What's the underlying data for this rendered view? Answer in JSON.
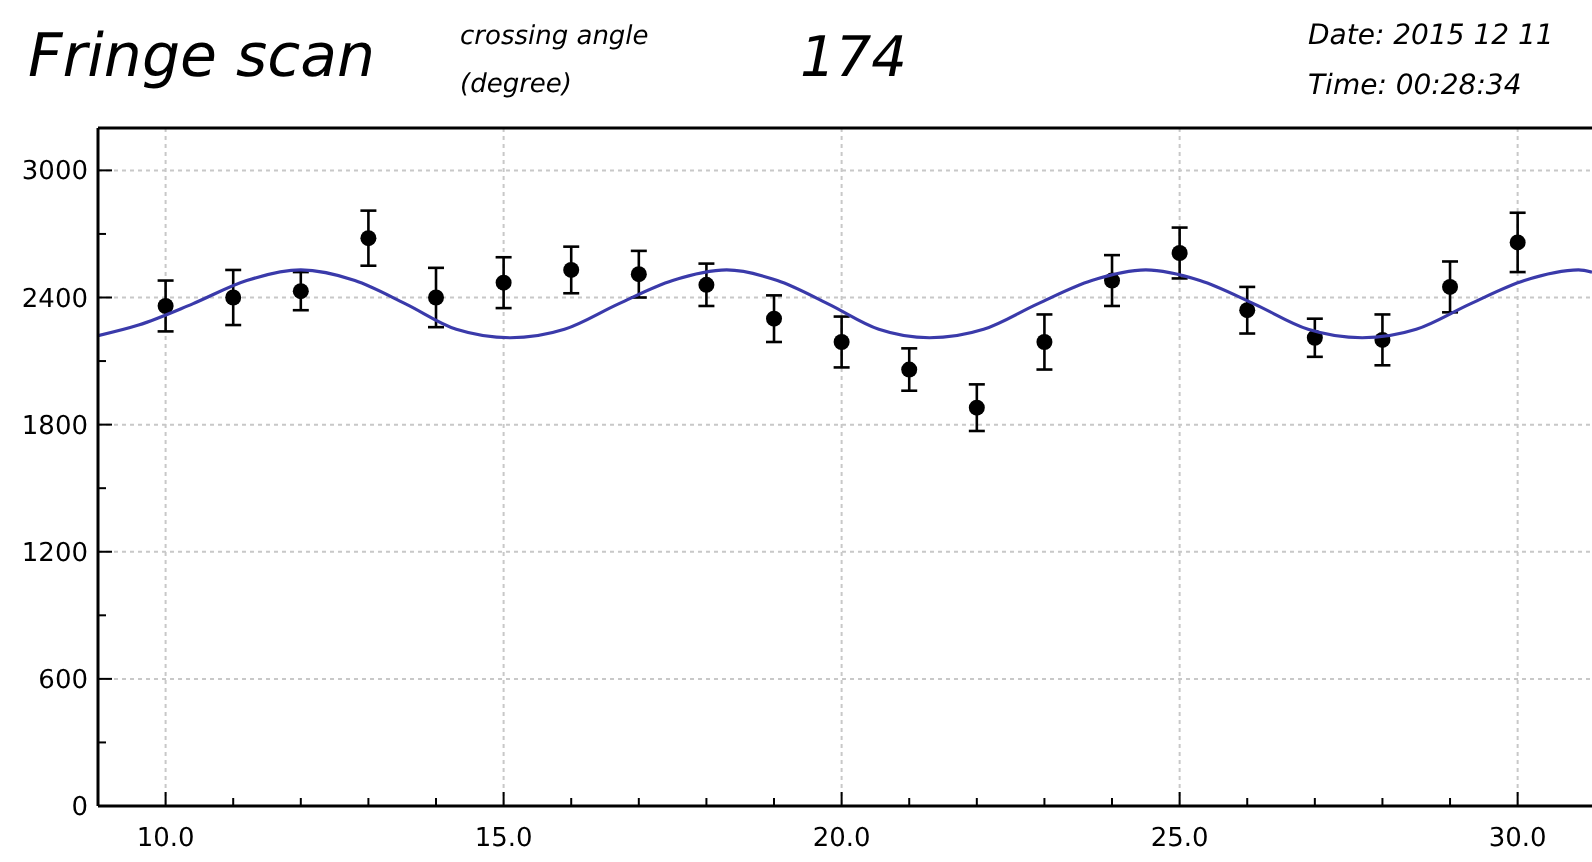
{
  "chart_data": {
    "type": "scatter",
    "title": "Fringe scan",
    "annotations": [
      "crossing angle",
      "(degree)",
      "174",
      "Date: 2015 12 11",
      "Time: 00:28:34"
    ],
    "xlim": [
      9,
      31.1
    ],
    "xticks": [
      {
        "value": 10,
        "label": "10.0"
      },
      {
        "value": 15,
        "label": "15.0"
      },
      {
        "value": 20,
        "label": "20.0"
      },
      {
        "value": 25,
        "label": "25.0"
      },
      {
        "value": 30,
        "label": "30.0"
      }
    ],
    "ylim": [
      0,
      3200
    ],
    "yticks": [
      0,
      600,
      1200,
      1800,
      2400,
      3000
    ],
    "grid": true,
    "marker": "circle",
    "series": [
      {
        "color": "#000000",
        "x": [
          10,
          11,
          12,
          13,
          14,
          15,
          16,
          17,
          18,
          19,
          20,
          21,
          22,
          23,
          24,
          25,
          26,
          27,
          28,
          29,
          30
        ],
        "values": [
          2360,
          2400,
          2430,
          2680,
          2400,
          2470,
          2530,
          2510,
          2460,
          2300,
          2190,
          2060,
          1880,
          2190,
          2480,
          2610,
          2340,
          2210,
          2200,
          2450,
          2660
        ],
        "errors": [
          120,
          130,
          90,
          130,
          140,
          120,
          110,
          110,
          100,
          110,
          120,
          100,
          110,
          130,
          120,
          120,
          110,
          90,
          120,
          120,
          140
        ]
      },
      {
        "type": "line",
        "color": "#3a3aaa",
        "line_style": "solid",
        "marker": "none",
        "x": [
          9.0,
          9.6,
          10.4,
          11.2,
          12.0,
          12.8,
          13.55,
          14.3,
          15.1,
          15.9,
          16.7,
          17.5,
          18.3,
          19.05,
          19.8,
          20.55,
          21.3,
          22.1,
          22.9,
          23.7,
          24.5,
          25.3,
          26.1,
          26.9,
          27.7,
          28.5,
          29.3,
          30.1,
          30.9,
          31.1
        ],
        "values": [
          2220,
          2270,
          2370,
          2480,
          2530,
          2480,
          2370,
          2250,
          2210,
          2250,
          2370,
          2480,
          2530,
          2480,
          2370,
          2250,
          2210,
          2250,
          2370,
          2480,
          2530,
          2480,
          2370,
          2250,
          2210,
          2250,
          2370,
          2480,
          2530,
          2520
        ]
      }
    ]
  }
}
